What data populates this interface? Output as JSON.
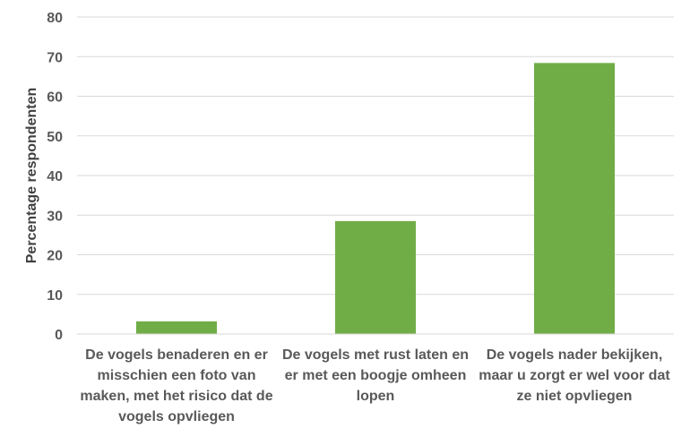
{
  "chart_data": {
    "type": "bar",
    "categories": [
      "De vogels benaderen en er misschien een foto van maken, met het risico dat de vogels opvliegen",
      "De vogels met rust laten en er met een boogje omheen lopen",
      "De vogels nader bekijken, maar u zorgt er wel voor dat ze niet opvliegen"
    ],
    "values": [
      3.2,
      28.5,
      68.4
    ],
    "title": "",
    "xlabel": "",
    "ylabel": "Percentage respondenten",
    "ylim": [
      0,
      80
    ],
    "yticks": [
      0,
      10,
      20,
      30,
      40,
      50,
      60,
      70,
      80
    ],
    "grid": true,
    "legend": "none",
    "bar_color": "#70AD47",
    "grid_color": "#D9D9D9"
  }
}
